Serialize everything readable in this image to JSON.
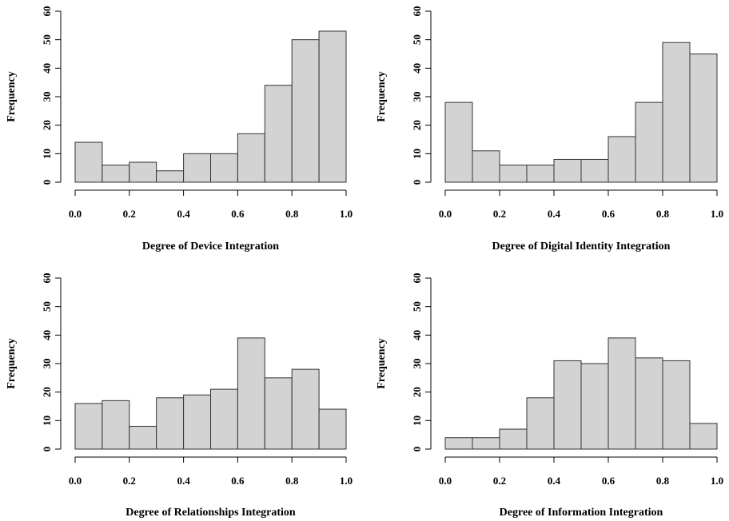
{
  "chart_data": [
    {
      "type": "bar",
      "ylabel": "Frequency",
      "xlabel": "Degree of Device Integration",
      "bin_edges": [
        0.0,
        0.1,
        0.2,
        0.3,
        0.4,
        0.5,
        0.6,
        0.7,
        0.8,
        0.9,
        1.0
      ],
      "values": [
        14,
        6,
        7,
        4,
        10,
        10,
        17,
        34,
        50,
        53
      ],
      "xlim": [
        0.0,
        1.0
      ],
      "ylim": [
        0,
        60
      ],
      "xticks": [
        "0.0",
        "0.2",
        "0.4",
        "0.6",
        "0.8",
        "1.0"
      ],
      "yticks": [
        "0",
        "10",
        "20",
        "30",
        "40",
        "50",
        "60"
      ]
    },
    {
      "type": "bar",
      "ylabel": "Frequency",
      "xlabel": "Degree of Digital Identity Integration",
      "bin_edges": [
        0.0,
        0.1,
        0.2,
        0.3,
        0.4,
        0.5,
        0.6,
        0.7,
        0.8,
        0.9,
        1.0
      ],
      "values": [
        28,
        11,
        6,
        6,
        8,
        8,
        16,
        28,
        49,
        45
      ],
      "xlim": [
        0.0,
        1.0
      ],
      "ylim": [
        0,
        60
      ],
      "xticks": [
        "0.0",
        "0.2",
        "0.4",
        "0.6",
        "0.8",
        "1.0"
      ],
      "yticks": [
        "0",
        "10",
        "20",
        "30",
        "40",
        "50",
        "60"
      ]
    },
    {
      "type": "bar",
      "ylabel": "Frequency",
      "xlabel": "Degree of Relationships Integration",
      "bin_edges": [
        0.0,
        0.1,
        0.2,
        0.3,
        0.4,
        0.5,
        0.6,
        0.7,
        0.8,
        0.9,
        1.0
      ],
      "values": [
        16,
        17,
        8,
        18,
        19,
        21,
        39,
        25,
        28,
        14
      ],
      "xlim": [
        0.0,
        1.0
      ],
      "ylim": [
        0,
        60
      ],
      "xticks": [
        "0.0",
        "0.2",
        "0.4",
        "0.6",
        "0.8",
        "1.0"
      ],
      "yticks": [
        "0",
        "10",
        "20",
        "30",
        "40",
        "50",
        "60"
      ]
    },
    {
      "type": "bar",
      "ylabel": "Frequency",
      "xlabel": "Degree of Information Integration",
      "bin_edges": [
        0.0,
        0.1,
        0.2,
        0.3,
        0.4,
        0.5,
        0.6,
        0.7,
        0.8,
        0.9,
        1.0
      ],
      "values": [
        4,
        4,
        7,
        18,
        31,
        30,
        39,
        32,
        31,
        9
      ],
      "xlim": [
        0.0,
        1.0
      ],
      "ylim": [
        0,
        60
      ],
      "xticks": [
        "0.0",
        "0.2",
        "0.4",
        "0.6",
        "0.8",
        "1.0"
      ],
      "yticks": [
        "0",
        "10",
        "20",
        "30",
        "40",
        "50",
        "60"
      ]
    }
  ]
}
